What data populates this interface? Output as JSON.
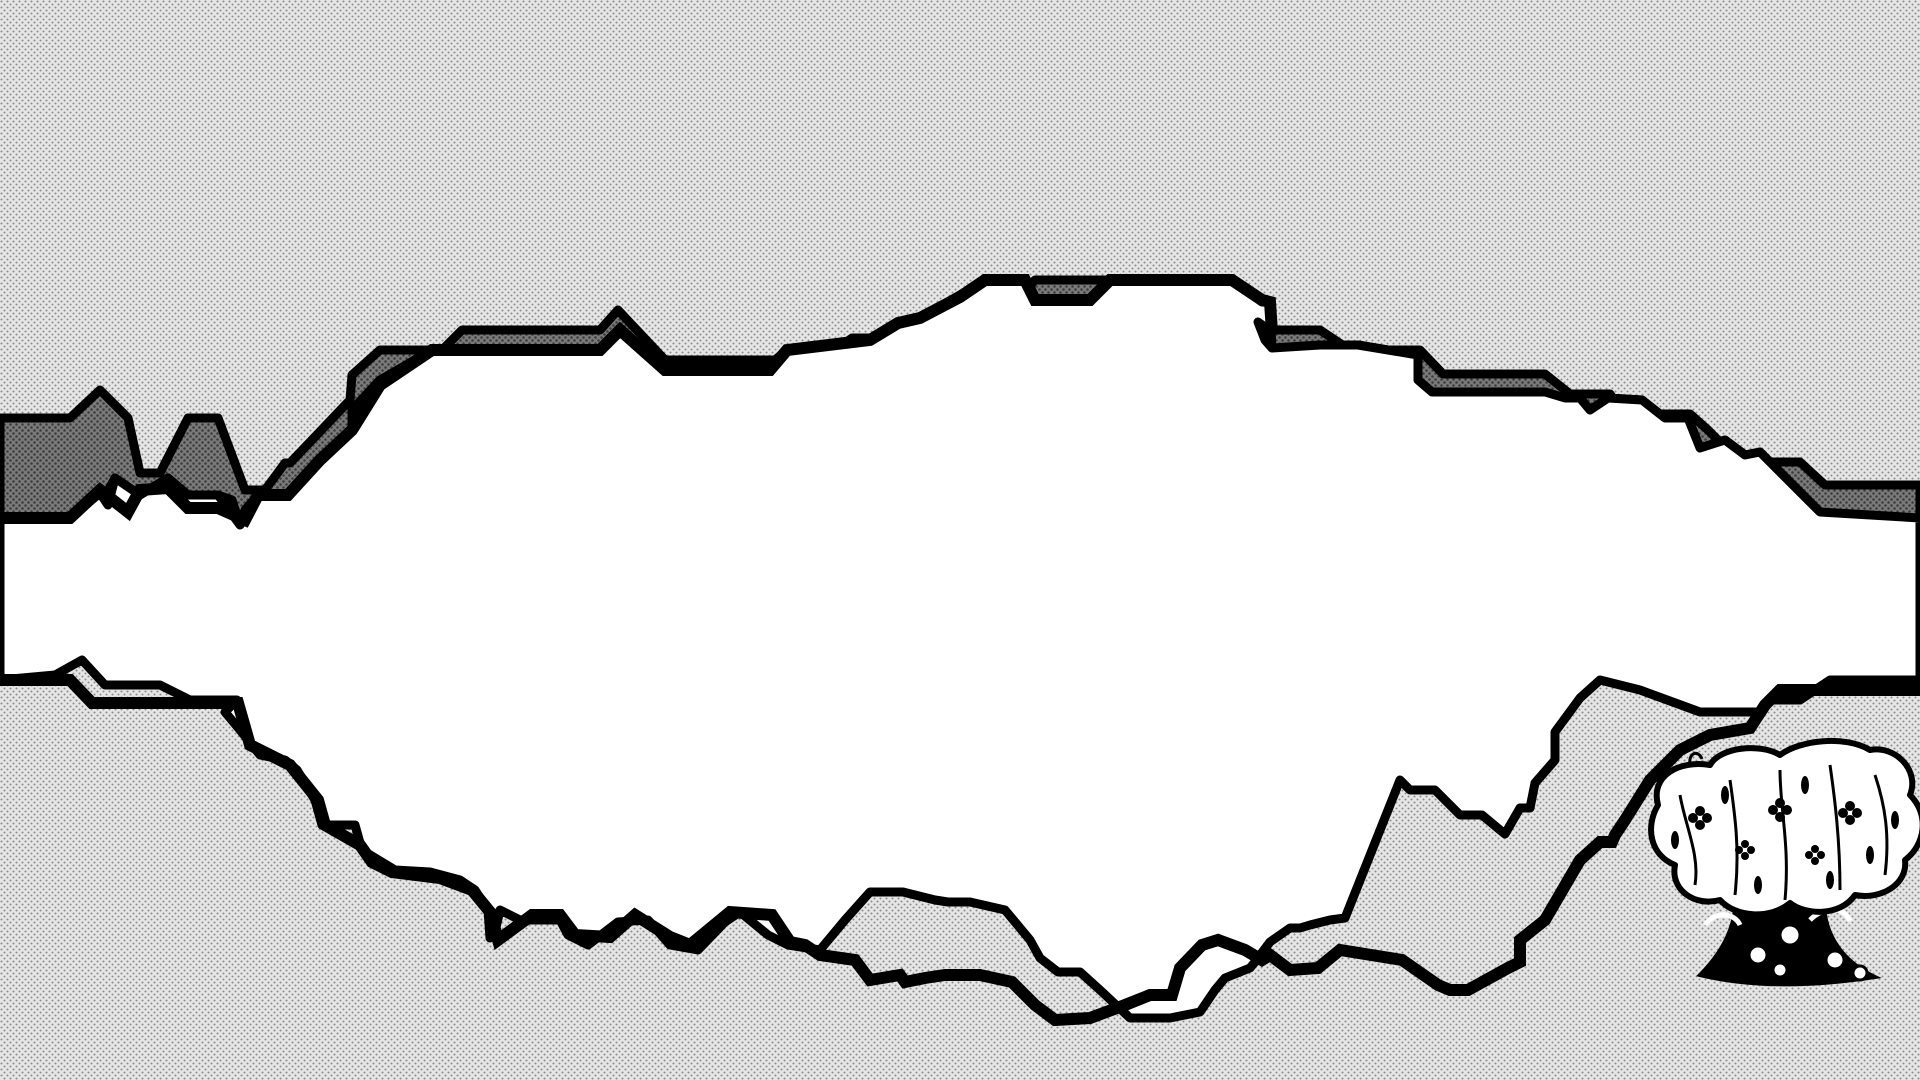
{
  "scene": {
    "style": "monochrome halftone cave corridor",
    "colors": {
      "ink": "#000000",
      "paper": "#ffffff",
      "halftone_light_bg": "#e6e6e6",
      "halftone_light_dot": "#8c8c8c",
      "halftone_dark_bg": "#7a7a7a",
      "halftone_dark_dot": "#3a3a3a"
    },
    "layers": {
      "background": "halftone-light",
      "ceiling_band": "halftone-dark",
      "walkway": "white"
    },
    "objects": [
      {
        "kind": "tree",
        "icon": "blossom-tree-icon"
      }
    ]
  }
}
